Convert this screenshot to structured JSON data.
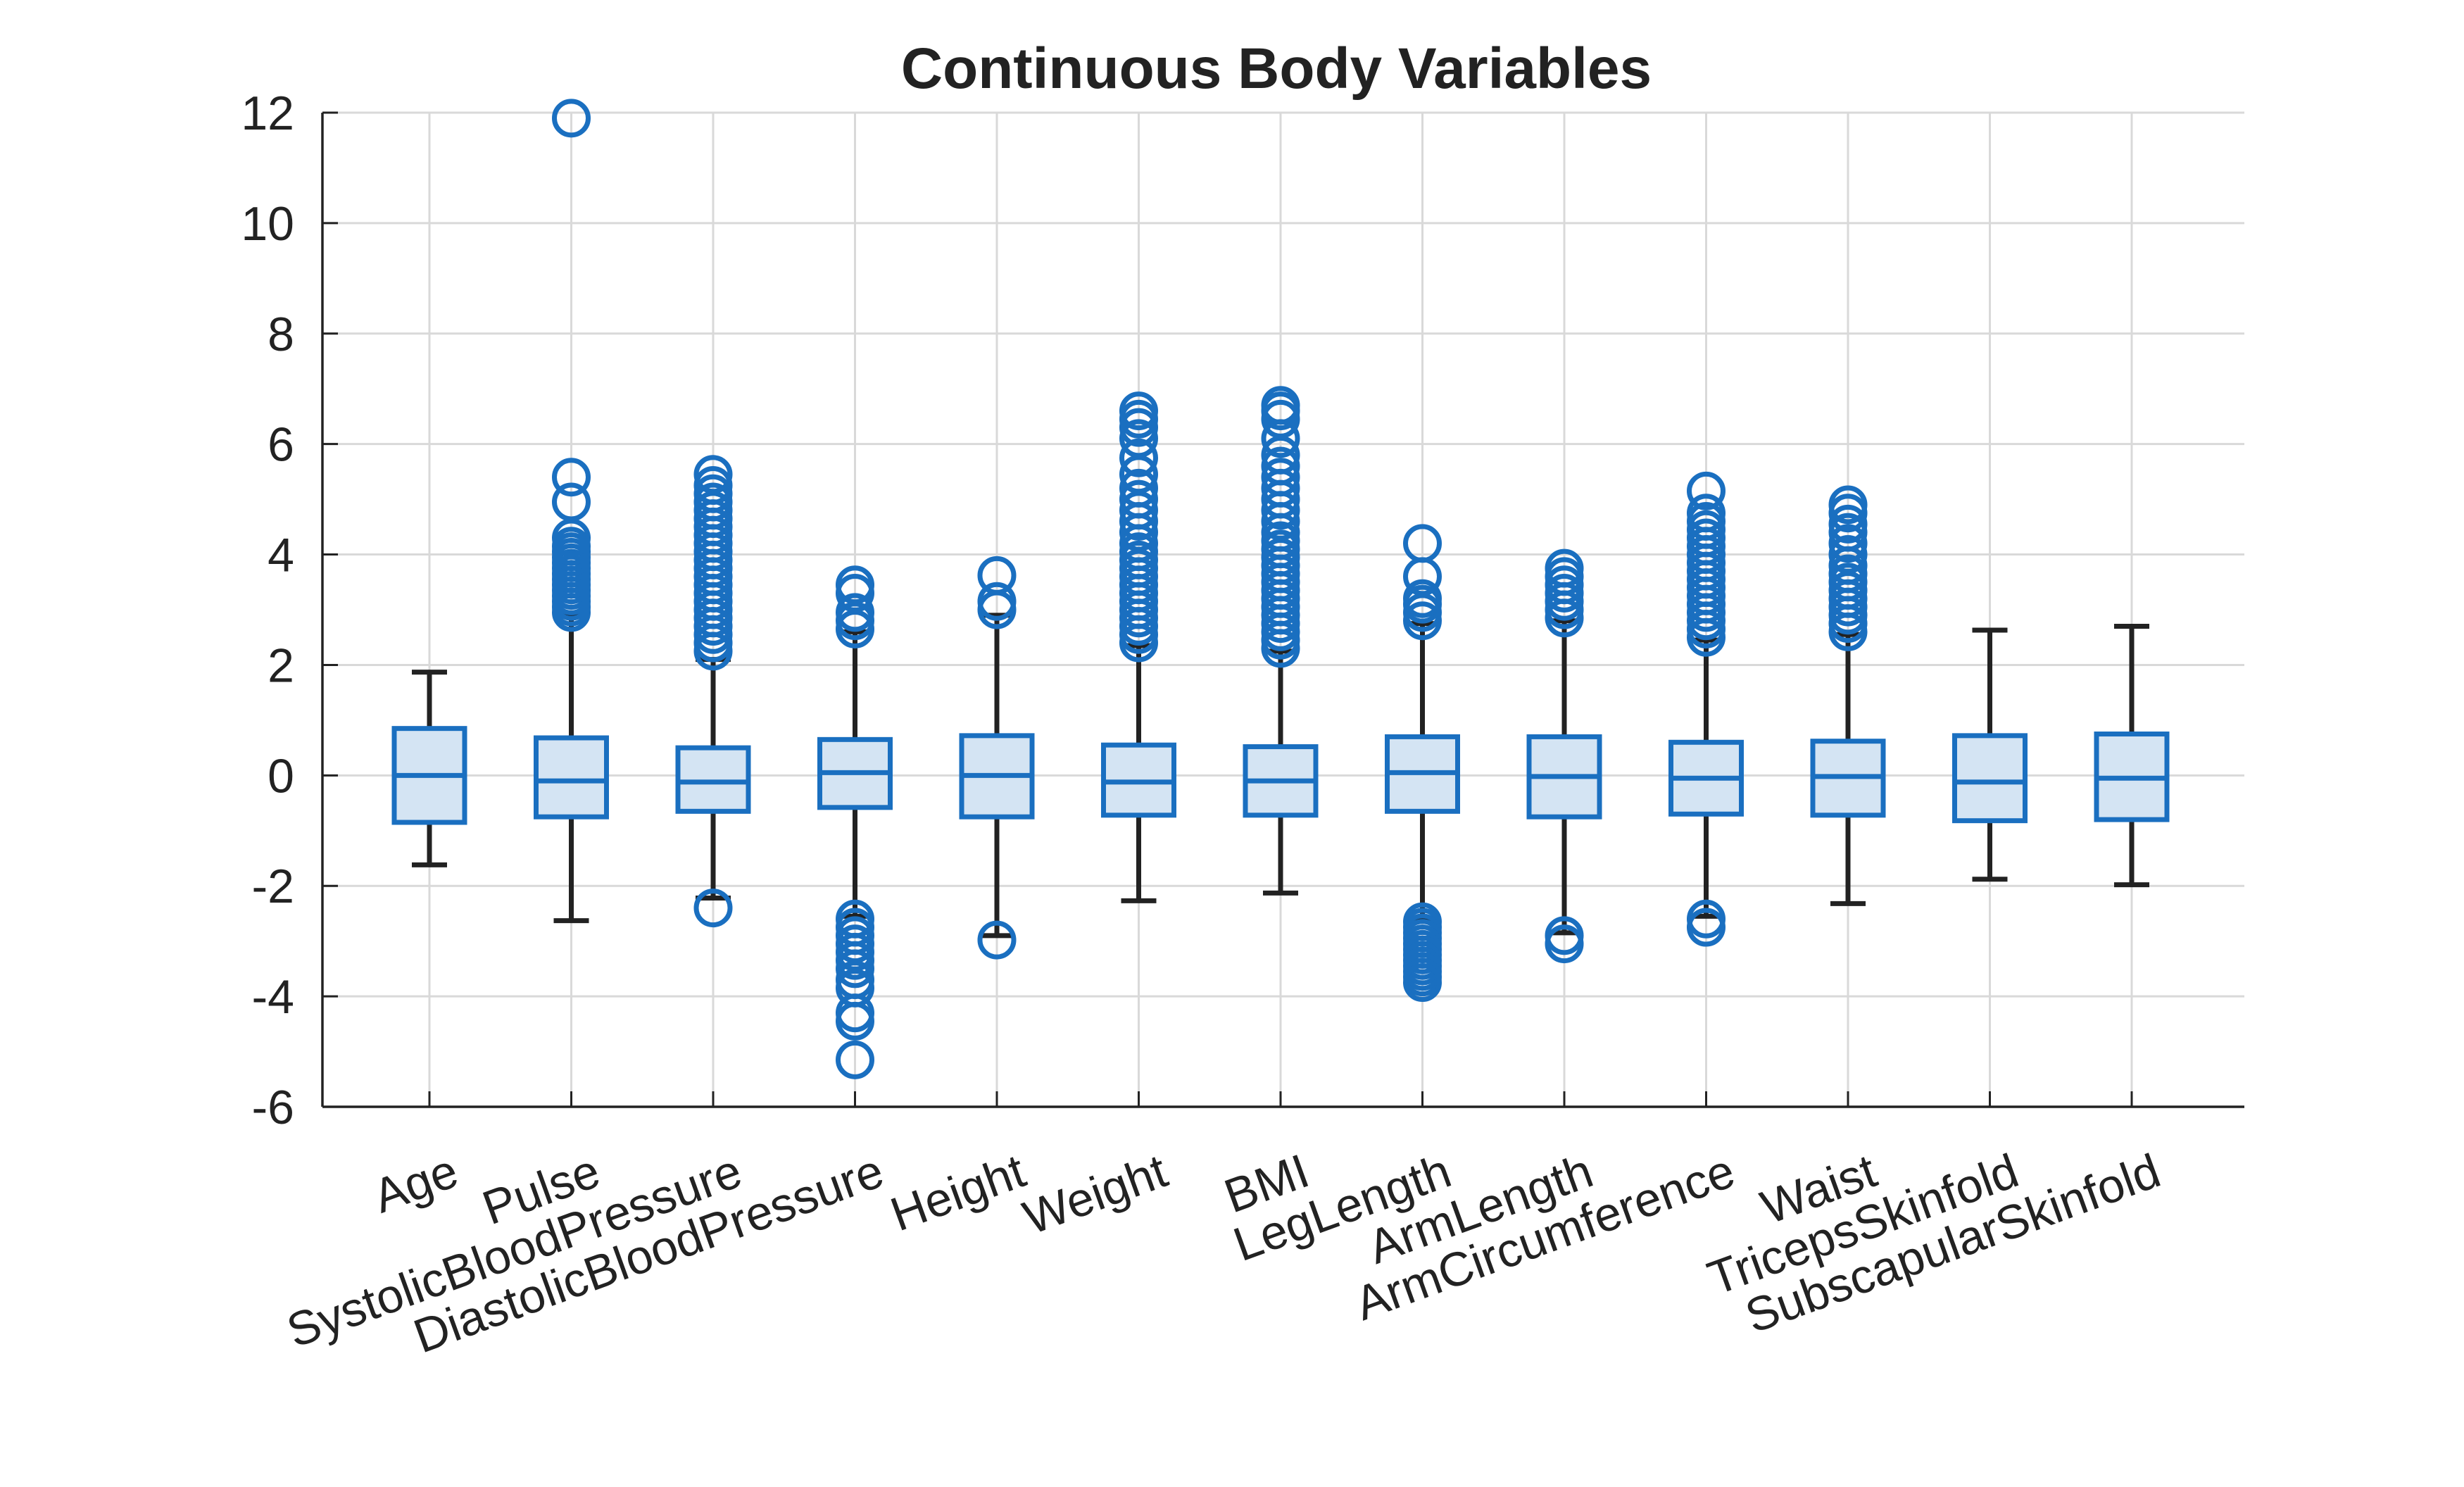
{
  "chart_data": {
    "type": "boxplot",
    "title": "Continuous Body Variables",
    "xlabel": "",
    "ylabel": "",
    "ylim": [
      -6,
      12
    ],
    "yticks": [
      12,
      10,
      8,
      6,
      4,
      2,
      0,
      -2,
      -4,
      -6
    ],
    "ytick_labels": [
      "12",
      "10",
      "8",
      "6",
      "4",
      "2",
      "0",
      "-2",
      "-4",
      "-6"
    ],
    "grid": true,
    "colors": {
      "box_edge": "#1a6fc0",
      "box_fill": "#d4e4f3",
      "whisker": "#222222",
      "outlier": "#1a6fc0",
      "grid": "#d9d9d9",
      "axis": "#222222"
    },
    "categories": [
      "Age",
      "Pulse",
      "SystolicBloodPressure",
      "DiastolicBloodPressure",
      "Height",
      "Weight",
      "BMI",
      "LegLength",
      "ArmLength",
      "ArmCircumference",
      "Waist",
      "TricepsSkinfold",
      "SubscapularSkinfold"
    ],
    "boxes": [
      {
        "whisker_low": -1.62,
        "q1": -0.85,
        "median": 0.0,
        "q3": 0.85,
        "whisker_high": 1.87,
        "outliers": []
      },
      {
        "whisker_low": -2.63,
        "q1": -0.75,
        "median": -0.1,
        "q3": 0.68,
        "whisker_high": 2.9,
        "outliers": [
          2.95,
          3.05,
          3.15,
          3.25,
          3.35,
          3.45,
          3.55,
          3.65,
          3.75,
          3.85,
          3.95,
          4.05,
          4.15,
          4.3,
          4.95,
          5.4,
          11.9
        ]
      },
      {
        "whisker_low": -2.22,
        "q1": -0.65,
        "median": -0.12,
        "q3": 0.5,
        "whisker_high": 2.1,
        "outliers": [
          2.25,
          2.4,
          2.55,
          2.7,
          2.85,
          3.0,
          3.15,
          3.3,
          3.45,
          3.6,
          3.75,
          3.9,
          4.05,
          4.2,
          4.35,
          4.5,
          4.65,
          4.8,
          4.95,
          5.1,
          5.25,
          5.45,
          -2.4
        ]
      },
      {
        "whisker_low": -2.55,
        "q1": -0.58,
        "median": 0.05,
        "q3": 0.65,
        "whisker_high": 2.6,
        "outliers": [
          2.65,
          2.8,
          2.95,
          3.3,
          3.45,
          -2.6,
          -2.75,
          -2.9,
          -3.05,
          -3.2,
          -3.35,
          -3.5,
          -3.7,
          -3.85,
          -4.3,
          -4.45,
          -5.15
        ]
      },
      {
        "whisker_low": -2.9,
        "q1": -0.75,
        "median": 0.0,
        "q3": 0.72,
        "whisker_high": 2.9,
        "outliers": [
          3.0,
          3.15,
          3.62,
          -2.98
        ]
      },
      {
        "whisker_low": -2.27,
        "q1": -0.72,
        "median": -0.12,
        "q3": 0.55,
        "whisker_high": 2.35,
        "outliers": [
          2.4,
          2.55,
          2.7,
          2.85,
          3.0,
          3.15,
          3.3,
          3.45,
          3.6,
          3.75,
          3.9,
          4.05,
          4.2,
          4.4,
          4.6,
          4.8,
          5.0,
          5.2,
          5.45,
          5.75,
          6.1,
          6.3,
          6.45,
          6.6
        ]
      },
      {
        "whisker_low": -2.13,
        "q1": -0.72,
        "median": -0.1,
        "q3": 0.52,
        "whisker_high": 2.25,
        "outliers": [
          2.3,
          2.45,
          2.6,
          2.75,
          2.9,
          3.05,
          3.2,
          3.35,
          3.5,
          3.65,
          3.8,
          3.95,
          4.1,
          4.25,
          4.4,
          4.6,
          4.8,
          5.0,
          5.2,
          5.4,
          5.6,
          5.8,
          6.1,
          6.45,
          6.6,
          6.7
        ]
      },
      {
        "whisker_low": -2.6,
        "q1": -0.65,
        "median": 0.05,
        "q3": 0.7,
        "whisker_high": 2.75,
        "outliers": [
          2.8,
          2.95,
          3.1,
          3.2,
          3.6,
          4.2,
          -2.65,
          -2.75,
          -2.85,
          -2.95,
          -3.05,
          -3.15,
          -3.25,
          -3.35,
          -3.45,
          -3.55,
          -3.65,
          -3.75
        ]
      },
      {
        "whisker_low": -2.85,
        "q1": -0.75,
        "median": -0.02,
        "q3": 0.7,
        "whisker_high": 2.8,
        "outliers": [
          2.85,
          3.0,
          3.15,
          3.3,
          3.45,
          3.6,
          3.75,
          -2.9,
          -3.05
        ]
      },
      {
        "whisker_low": -2.55,
        "q1": -0.7,
        "median": -0.05,
        "q3": 0.6,
        "whisker_high": 2.45,
        "outliers": [
          2.5,
          2.65,
          2.8,
          2.95,
          3.1,
          3.25,
          3.4,
          3.55,
          3.7,
          3.85,
          4.0,
          4.15,
          4.3,
          4.45,
          4.6,
          4.75,
          5.15,
          -2.6,
          -2.75
        ]
      },
      {
        "whisker_low": -2.32,
        "q1": -0.72,
        "median": -0.02,
        "q3": 0.62,
        "whisker_high": 2.55,
        "outliers": [
          2.6,
          2.75,
          2.9,
          3.05,
          3.2,
          3.35,
          3.5,
          3.65,
          3.8,
          4.0,
          4.2,
          4.4,
          4.55,
          4.75,
          4.9
        ]
      },
      {
        "whisker_low": -1.88,
        "q1": -0.82,
        "median": -0.12,
        "q3": 0.72,
        "whisker_high": 2.63,
        "outliers": []
      },
      {
        "whisker_low": -1.98,
        "q1": -0.8,
        "median": -0.05,
        "q3": 0.75,
        "whisker_high": 2.7,
        "outliers": []
      }
    ]
  }
}
